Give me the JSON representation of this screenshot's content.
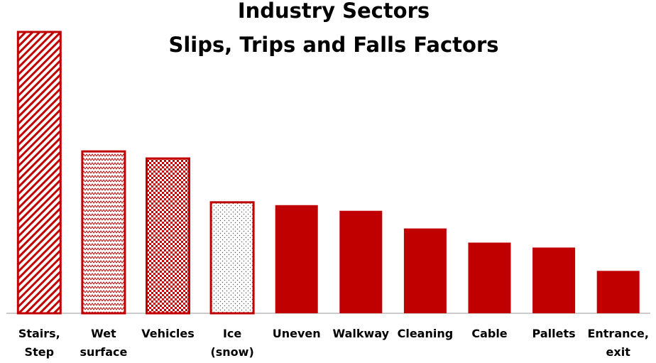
{
  "chart_data": {
    "type": "bar",
    "title": "Industry Sectors",
    "subtitle": "Slips, Trips and Falls Factors",
    "categories": [
      "Stairs, Step",
      "Wet surface",
      "Vehicles",
      "Ice (snow)",
      "Uneven",
      "Walkway",
      "Cleaning",
      "Cable",
      "Pallets",
      "Entrance, exit"
    ],
    "values": [
      398,
      229,
      219,
      157,
      153,
      145,
      120,
      100,
      93,
      60
    ],
    "patterns": [
      "diagonal",
      "zigzag",
      "checker",
      "dots",
      null,
      null,
      null,
      null,
      null,
      null
    ],
    "color": "#c00000",
    "ylim": [
      0,
      400
    ]
  }
}
